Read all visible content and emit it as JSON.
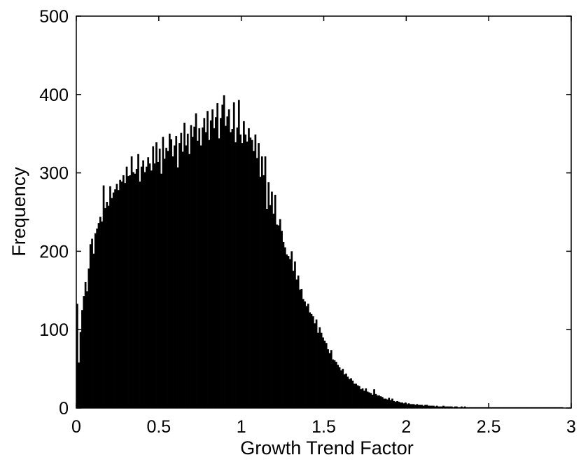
{
  "chart_data": {
    "type": "bar",
    "title": "",
    "xlabel": "Growth Trend Factor",
    "ylabel": "Frequency",
    "xlim": [
      0,
      3
    ],
    "ylim": [
      0,
      500
    ],
    "x_ticks": [
      0,
      0.5,
      1,
      1.5,
      2,
      2.5,
      3
    ],
    "x_tick_labels": [
      "0",
      "0.5",
      "1",
      "1.5",
      "2",
      "2.5",
      "3"
    ],
    "y_ticks": [
      0,
      100,
      200,
      300,
      400,
      500
    ],
    "y_tick_labels": [
      "0",
      "100",
      "200",
      "300",
      "400",
      "500"
    ],
    "grid": false,
    "bar_color": "#000000",
    "bin_width": 0.01,
    "bin_centers": [
      0.005,
      0.015,
      0.025,
      0.035,
      0.045,
      0.055,
      0.065,
      0.075,
      0.085,
      0.095,
      0.105,
      0.115,
      0.125,
      0.135,
      0.145,
      0.155,
      0.165,
      0.175,
      0.185,
      0.195,
      0.205,
      0.215,
      0.225,
      0.235,
      0.245,
      0.255,
      0.265,
      0.275,
      0.285,
      0.295,
      0.305,
      0.315,
      0.325,
      0.335,
      0.345,
      0.355,
      0.365,
      0.375,
      0.385,
      0.395,
      0.405,
      0.415,
      0.425,
      0.435,
      0.445,
      0.455,
      0.465,
      0.475,
      0.485,
      0.495,
      0.505,
      0.515,
      0.525,
      0.535,
      0.545,
      0.555,
      0.565,
      0.575,
      0.585,
      0.595,
      0.605,
      0.615,
      0.625,
      0.635,
      0.645,
      0.655,
      0.665,
      0.675,
      0.685,
      0.695,
      0.705,
      0.715,
      0.725,
      0.735,
      0.745,
      0.755,
      0.765,
      0.775,
      0.785,
      0.795,
      0.805,
      0.815,
      0.825,
      0.835,
      0.845,
      0.855,
      0.865,
      0.875,
      0.885,
      0.895,
      0.905,
      0.915,
      0.925,
      0.935,
      0.945,
      0.955,
      0.965,
      0.975,
      0.985,
      0.995,
      1.005,
      1.015,
      1.025,
      1.035,
      1.045,
      1.055,
      1.065,
      1.075,
      1.085,
      1.095,
      1.105,
      1.115,
      1.125,
      1.135,
      1.145,
      1.155,
      1.165,
      1.175,
      1.185,
      1.195,
      1.205,
      1.215,
      1.225,
      1.235,
      1.245,
      1.255,
      1.265,
      1.275,
      1.285,
      1.295,
      1.305,
      1.315,
      1.325,
      1.335,
      1.345,
      1.355,
      1.365,
      1.375,
      1.385,
      1.395,
      1.405,
      1.415,
      1.425,
      1.435,
      1.445,
      1.455,
      1.465,
      1.475,
      1.485,
      1.495,
      1.505,
      1.515,
      1.525,
      1.535,
      1.545,
      1.555,
      1.565,
      1.575,
      1.585,
      1.595,
      1.605,
      1.615,
      1.625,
      1.635,
      1.645,
      1.655,
      1.665,
      1.675,
      1.685,
      1.695,
      1.705,
      1.715,
      1.725,
      1.735,
      1.745,
      1.755,
      1.765,
      1.775,
      1.785,
      1.795,
      1.805,
      1.815,
      1.825,
      1.835,
      1.845,
      1.855,
      1.865,
      1.875,
      1.885,
      1.895,
      1.905,
      1.915,
      1.925,
      1.935,
      1.945,
      1.955,
      1.965,
      1.975,
      1.985,
      1.995,
      2.005,
      2.015,
      2.025,
      2.035,
      2.045,
      2.055,
      2.065,
      2.075,
      2.085,
      2.095,
      2.105,
      2.115,
      2.125,
      2.135,
      2.145,
      2.155,
      2.165,
      2.175,
      2.185,
      2.195,
      2.205,
      2.215,
      2.225,
      2.235,
      2.245,
      2.255,
      2.265,
      2.275,
      2.285,
      2.295,
      2.305,
      2.315,
      2.325,
      2.335,
      2.345,
      2.355,
      2.365,
      2.375,
      2.385,
      2.395,
      2.405,
      2.415,
      2.425,
      2.435,
      2.445,
      2.455,
      2.465,
      2.475,
      2.485,
      2.495,
      2.505,
      2.515,
      2.525,
      2.535,
      2.545,
      2.555,
      2.565,
      2.575,
      2.585,
      2.595,
      2.605,
      2.615,
      2.625,
      2.635,
      2.645,
      2.655,
      2.665,
      2.675,
      2.685,
      2.695,
      2.705,
      2.715,
      2.725,
      2.735,
      2.745,
      2.755,
      2.765,
      2.775,
      2.785,
      2.795,
      2.805,
      2.815,
      2.825,
      2.835,
      2.845,
      2.855,
      2.865,
      2.875,
      2.885,
      2.895,
      2.905,
      2.915,
      2.925,
      2.935,
      2.945
    ],
    "values": [
      133,
      58,
      97,
      125,
      143,
      161,
      149,
      178,
      209,
      216,
      197,
      223,
      229,
      236,
      244,
      238,
      284,
      255,
      263,
      258,
      283,
      268,
      275,
      279,
      286,
      278,
      291,
      289,
      297,
      287,
      308,
      296,
      297,
      321,
      301,
      299,
      305,
      324,
      289,
      308,
      316,
      301,
      308,
      320,
      312,
      303,
      334,
      312,
      339,
      314,
      331,
      299,
      346,
      318,
      332,
      328,
      350,
      343,
      321,
      335,
      347,
      307,
      338,
      351,
      327,
      364,
      335,
      350,
      324,
      361,
      346,
      359,
      376,
      341,
      357,
      335,
      358,
      370,
      352,
      379,
      342,
      367,
      381,
      357,
      371,
      389,
      344,
      370,
      387,
      399,
      360,
      372,
      381,
      352,
      356,
      390,
      339,
      358,
      393,
      349,
      338,
      366,
      349,
      340,
      357,
      345,
      342,
      328,
      349,
      319,
      338,
      295,
      321,
      297,
      321,
      254,
      288,
      259,
      276,
      248,
      272,
      234,
      233,
      241,
      226,
      212,
      205,
      196,
      194,
      190,
      200,
      175,
      187,
      164,
      169,
      151,
      152,
      139,
      136,
      130,
      133,
      122,
      120,
      117,
      108,
      113,
      96,
      103,
      96,
      90,
      86,
      83,
      75,
      70,
      74,
      62,
      61,
      59,
      55,
      52,
      48,
      50,
      43,
      44,
      40,
      37,
      38,
      35,
      31,
      31,
      29,
      28,
      24,
      25,
      22,
      25,
      21,
      20,
      19,
      17,
      24,
      18,
      16,
      16,
      15,
      14,
      12,
      12,
      11,
      13,
      10,
      12,
      9,
      8,
      9,
      8,
      7,
      7,
      6,
      7,
      5,
      6,
      5,
      5,
      5,
      4,
      5,
      4,
      4,
      4,
      3,
      4,
      4,
      3,
      3,
      3,
      3,
      2,
      3,
      2,
      2,
      2,
      3,
      2,
      2,
      2,
      2,
      2,
      1,
      2,
      2,
      1,
      1,
      2,
      1,
      2,
      1,
      1,
      1,
      1,
      1,
      1,
      1,
      1,
      1,
      1,
      1,
      1,
      1,
      1,
      1,
      1,
      1,
      1,
      1,
      1,
      1,
      1,
      1,
      1,
      1,
      1,
      1,
      1,
      1,
      1,
      1,
      1,
      1,
      1,
      1,
      1,
      1,
      1,
      1,
      1,
      1,
      1,
      1,
      1,
      1,
      1,
      1,
      1,
      1,
      1,
      1,
      1,
      1,
      1,
      1,
      1,
      1,
      1,
      1,
      1,
      1,
      1,
      1,
      1,
      1,
      1,
      1,
      1,
      1
    ]
  }
}
